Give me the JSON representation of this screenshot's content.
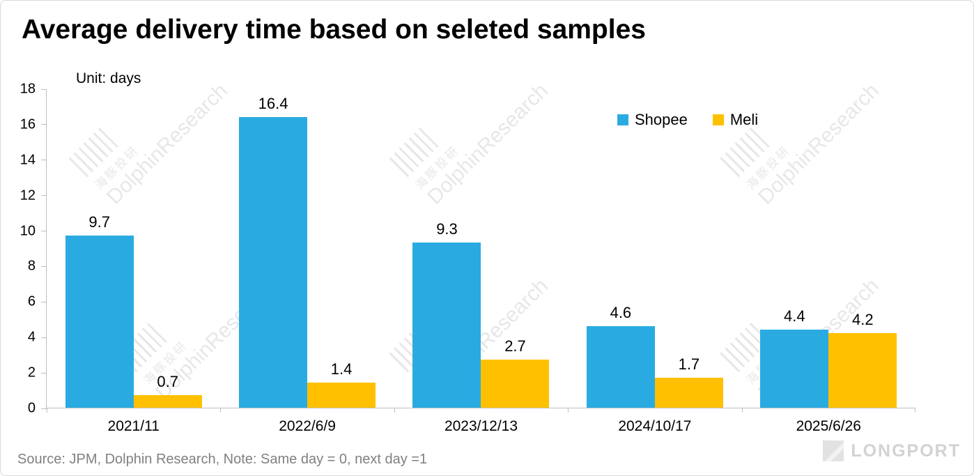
{
  "page": {
    "title": "Average delivery time based on seleted samples",
    "unit_label": "Unit: days",
    "source_note": "Source:  JPM, Dolphin Research, Note: Same day = 0, next day =1",
    "watermark": {
      "cn": "海豚投研",
      "en": "DolphinResearch"
    },
    "logo_text": "LONGPORT"
  },
  "chart_data": {
    "type": "bar",
    "title": "Average delivery time based on seleted samples",
    "unit": "days",
    "categories": [
      "2021/11",
      "2022/6/9",
      "2023/12/13",
      "2024/10/17",
      "2025/6/26"
    ],
    "series": [
      {
        "name": "Shopee",
        "color": "#29ABE2",
        "values": [
          9.7,
          16.4,
          9.3,
          4.6,
          4.4
        ]
      },
      {
        "name": "Meli",
        "color": "#FFC000",
        "values": [
          0.7,
          1.4,
          2.7,
          1.7,
          4.2
        ]
      }
    ],
    "ylim": [
      0,
      18
    ],
    "ytick_step": 2,
    "grid": false,
    "legend_position": "top-right",
    "value_labels": true
  }
}
